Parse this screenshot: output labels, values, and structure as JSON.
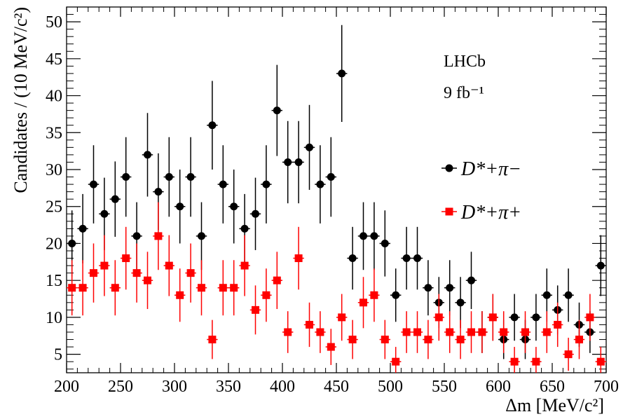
{
  "chart_data": {
    "type": "scatter",
    "title": "",
    "xlabel": "Δm [MeV/c²]",
    "ylabel": "Candidates / (10 MeV/c²)",
    "xlim": [
      200,
      700
    ],
    "ylim": [
      2.5,
      52
    ],
    "x_ticks": [
      200,
      250,
      300,
      350,
      400,
      450,
      500,
      550,
      600,
      650,
      700
    ],
    "y_ticks": [
      5,
      10,
      15,
      20,
      25,
      30,
      35,
      40,
      45,
      50
    ],
    "grid": false,
    "legend_position": "right",
    "annotations": [
      "LHCb",
      "9 fb⁻¹"
    ],
    "colors": {
      "series1": "#000000",
      "series2": "#ff0000"
    },
    "series": [
      {
        "name": "D*+π−",
        "marker": "circle",
        "x": [
          205,
          215,
          225,
          235,
          245,
          255,
          265,
          275,
          285,
          295,
          305,
          315,
          325,
          335,
          345,
          355,
          365,
          375,
          385,
          395,
          405,
          415,
          425,
          435,
          445,
          455,
          465,
          475,
          485,
          495,
          505,
          515,
          525,
          535,
          545,
          555,
          565,
          575,
          585,
          595,
          605,
          615,
          625,
          635,
          645,
          655,
          665,
          675,
          685,
          695
        ],
        "y": [
          20,
          22,
          28,
          24,
          26,
          29,
          21,
          32,
          27,
          29,
          25,
          29,
          21,
          36,
          28,
          25,
          22,
          24,
          28,
          38,
          31,
          31,
          33,
          28,
          29,
          43,
          18,
          21,
          21,
          20,
          13,
          18,
          18,
          14,
          12,
          14,
          12,
          15,
          8,
          10,
          7,
          10,
          7,
          10,
          13,
          11,
          13,
          9,
          8,
          17
        ]
      },
      {
        "name": "D*+π+",
        "marker": "square",
        "x": [
          205,
          215,
          225,
          235,
          245,
          255,
          265,
          275,
          285,
          295,
          305,
          315,
          325,
          335,
          345,
          355,
          365,
          375,
          385,
          395,
          405,
          415,
          425,
          435,
          445,
          455,
          465,
          475,
          485,
          495,
          505,
          515,
          525,
          535,
          545,
          555,
          565,
          575,
          585,
          595,
          605,
          615,
          625,
          635,
          645,
          655,
          665,
          675,
          685,
          695
        ],
        "y": [
          14,
          14,
          16,
          17,
          14,
          18,
          16,
          15,
          21,
          17,
          13,
          16,
          14,
          7,
          14,
          14,
          17,
          11,
          13,
          15,
          8,
          18,
          9,
          8,
          6,
          10,
          7,
          12,
          13,
          7,
          4,
          8,
          8,
          7,
          10,
          8,
          7,
          8,
          8,
          10,
          8,
          4,
          8,
          4,
          8,
          9,
          5,
          7,
          10,
          4
        ]
      }
    ]
  }
}
